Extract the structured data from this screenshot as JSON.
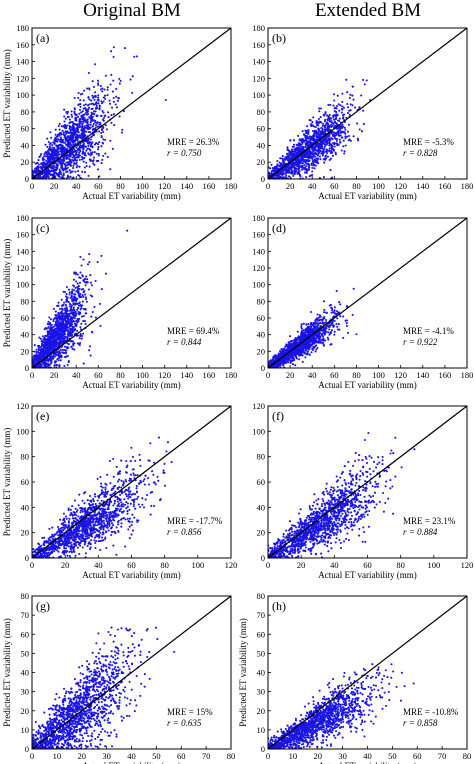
{
  "headers": {
    "left": "Original BM",
    "right": "Extended BM"
  },
  "colors": {
    "points": "#1a14e6",
    "line": "#000000"
  },
  "chart_data": [
    {
      "type": "scatter",
      "panel_label": "(a)",
      "xlabel": "Actual ET variability (mm)",
      "ylabel": "Predicted ET variability (mm)",
      "xlim": [
        0,
        180
      ],
      "ylim": [
        0,
        180
      ],
      "xticks": [
        "0",
        "20",
        "40",
        "60",
        "80",
        "100",
        "120",
        "140",
        "160",
        "180"
      ],
      "yticks": [
        "0",
        "20",
        "40",
        "60",
        "80",
        "100",
        "120",
        "140",
        "160",
        "180"
      ],
      "reference_line": "1:1",
      "stats": {
        "mre": "MRE = 26.3%",
        "r": "r = 0.750"
      },
      "cloud": {
        "x_mean": 33,
        "x_sd": 16,
        "slope": 1.2,
        "y_sd": 18,
        "x_max": 160,
        "y_max": 180
      }
    },
    {
      "type": "scatter",
      "panel_label": "(b)",
      "xlabel": "Actual ET variability (mm)",
      "ylabel": "",
      "xlim": [
        0,
        180
      ],
      "ylim": [
        0,
        180
      ],
      "xticks": [
        "0",
        "20",
        "40",
        "60",
        "80",
        "100",
        "120",
        "140",
        "160",
        "180"
      ],
      "yticks": [
        "0",
        "20",
        "40",
        "60",
        "80",
        "100",
        "120",
        "140",
        "160",
        "180"
      ],
      "reference_line": "1:1",
      "stats": {
        "mre": "MRE = -5.3%",
        "r": "r = 0.828"
      },
      "cloud": {
        "x_mean": 35,
        "x_sd": 17,
        "slope": 0.95,
        "y_sd": 12,
        "x_max": 170,
        "y_max": 160
      }
    },
    {
      "type": "scatter",
      "panel_label": "(c)",
      "xlabel": "Actual ET variability (mm)",
      "ylabel": "Predicted ET variability (mm)",
      "xlim": [
        0,
        180
      ],
      "ylim": [
        0,
        180
      ],
      "xticks": [
        "0",
        "20",
        "40",
        "60",
        "80",
        "100",
        "120",
        "140",
        "160",
        "180"
      ],
      "yticks": [
        "0",
        "20",
        "40",
        "60",
        "80",
        "100",
        "120",
        "140",
        "160",
        "180"
      ],
      "reference_line": "1:1",
      "stats": {
        "mre": "MRE = 69.4%",
        "r": "r = 0.844"
      },
      "cloud": {
        "x_mean": 22,
        "x_sd": 12,
        "slope": 1.7,
        "y_sd": 15,
        "x_max": 120,
        "y_max": 178
      }
    },
    {
      "type": "scatter",
      "panel_label": "(d)",
      "xlabel": "Actual ET variability (mm)",
      "ylabel": "",
      "xlim": [
        0,
        180
      ],
      "ylim": [
        0,
        180
      ],
      "xticks": [
        "0",
        "20",
        "40",
        "60",
        "80",
        "100",
        "120",
        "140",
        "160",
        "180"
      ],
      "yticks": [
        "0",
        "20",
        "40",
        "60",
        "80",
        "100",
        "120",
        "140",
        "160",
        "180"
      ],
      "reference_line": "1:1",
      "stats": {
        "mre": "MRE = -4.1%",
        "r": "r = 0.922"
      },
      "cloud": {
        "x_mean": 28,
        "x_sd": 14,
        "slope": 0.95,
        "y_sd": 7,
        "x_max": 165,
        "y_max": 130
      }
    },
    {
      "type": "scatter",
      "panel_label": "(e)",
      "xlabel": "Actual ET variability (mm)",
      "ylabel": "Predicted ET variability (mm)",
      "xlim": [
        0,
        120
      ],
      "ylim": [
        0,
        120
      ],
      "xticks": [
        "0",
        "20",
        "40",
        "60",
        "80",
        "100",
        "120"
      ],
      "yticks": [
        "0",
        "20",
        "40",
        "60",
        "80",
        "100",
        "120"
      ],
      "reference_line": "1:1",
      "stats": {
        "mre": "MRE = -17.7%",
        "r": "r = 0.856"
      },
      "cloud": {
        "x_mean": 32,
        "x_sd": 16,
        "slope": 0.82,
        "y_sd": 9,
        "x_max": 118,
        "y_max": 110
      }
    },
    {
      "type": "scatter",
      "panel_label": "(f)",
      "xlabel": "Actual ET variability (mm)",
      "ylabel": "",
      "xlim": [
        0,
        120
      ],
      "ylim": [
        0,
        120
      ],
      "xticks": [
        "0",
        "20",
        "40",
        "60",
        "80",
        "100",
        "120"
      ],
      "yticks": [
        "0",
        "20",
        "40",
        "60",
        "80",
        "100",
        "120"
      ],
      "reference_line": "1:1",
      "stats": {
        "mre": "MRE = 23.1%",
        "r": "r = 0.884"
      },
      "cloud": {
        "x_mean": 32,
        "x_sd": 16,
        "slope": 0.88,
        "y_sd": 9,
        "x_max": 118,
        "y_max": 100
      }
    },
    {
      "type": "scatter",
      "panel_label": "(g)",
      "xlabel": "Actual ET variability (mm)",
      "ylabel": "Predicted ET variability (mm)",
      "xlim": [
        0,
        80
      ],
      "ylim": [
        0,
        80
      ],
      "xticks": [
        "0",
        "10",
        "20",
        "30",
        "40",
        "50",
        "60",
        "70",
        "80"
      ],
      "yticks": [
        "0",
        "10",
        "20",
        "30",
        "40",
        "50",
        "60",
        "70",
        "80"
      ],
      "reference_line": "1:1",
      "stats": {
        "mre": "MRE = 15%",
        "r": "r = 0.635"
      },
      "cloud": {
        "x_mean": 18,
        "x_sd": 9,
        "slope": 1.05,
        "y_sd": 9,
        "x_max": 58,
        "y_max": 65
      }
    },
    {
      "type": "scatter",
      "panel_label": "(h)",
      "xlabel": "Actual ET variability (mm)",
      "ylabel": "Predicted ET variability (mm)",
      "xlim": [
        0,
        80
      ],
      "ylim": [
        0,
        80
      ],
      "xticks": [
        "0",
        "10",
        "20",
        "30",
        "40",
        "50",
        "60",
        "70",
        "80"
      ],
      "yticks": [
        "0",
        "10",
        "20",
        "30",
        "40",
        "50",
        "60",
        "70",
        "80"
      ],
      "reference_line": "1:1",
      "stats": {
        "mre": "MRE = -10.8%",
        "r": "r = 0.858"
      },
      "cloud": {
        "x_mean": 20,
        "x_sd": 10,
        "slope": 0.7,
        "y_sd": 5,
        "x_max": 65,
        "y_max": 45
      }
    }
  ]
}
